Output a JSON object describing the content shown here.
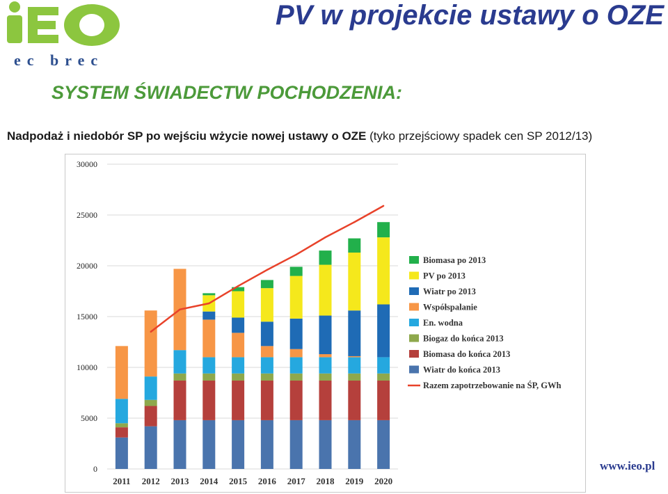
{
  "header": {
    "logo_main": "iEO",
    "logo_sub": "ec brec",
    "title": "PV w projekcie ustawy o OZE",
    "section_title": "SYSTEM ŚWIADECTW POCHODZENIA:",
    "subtitle_bold": "Nadpodaż i niedobór SP po wejściu wżycie nowej ustawy o OZE",
    "subtitle_normal": " (tyko przejściowy spadek cen SP 2012/13)"
  },
  "footer": {
    "url": "www.ieo.pl"
  },
  "colors": {
    "logo_green": "#8cc63f",
    "title_blue": "#2a3b8f",
    "section_green": "#4c9a3a"
  },
  "chart_data": {
    "type": "bar",
    "stacked": true,
    "categories": [
      "2011",
      "2012",
      "2013",
      "2014",
      "2015",
      "2016",
      "2017",
      "2018",
      "2019",
      "2020"
    ],
    "ylim": [
      0,
      30000
    ],
    "yticks": [
      0,
      5000,
      10000,
      15000,
      20000,
      25000,
      30000
    ],
    "grid": true,
    "legend_position": "right",
    "series": [
      {
        "name": "Wiatr do końca 2013",
        "color": "#4a74ad",
        "values": [
          3100,
          4200,
          4800,
          4800,
          4800,
          4800,
          4800,
          4800,
          4800,
          4800
        ]
      },
      {
        "name": "Biomasa do końca 2013",
        "color": "#b5403c",
        "values": [
          1000,
          2000,
          3900,
          3900,
          3900,
          3900,
          3900,
          3900,
          3900,
          3900
        ]
      },
      {
        "name": "Biogaz do końca 2013",
        "color": "#8ea84c",
        "values": [
          400,
          600,
          700,
          700,
          700,
          700,
          700,
          700,
          700,
          700
        ]
      },
      {
        "name": "En. wodna",
        "color": "#25a8df",
        "values": [
          2400,
          2300,
          2300,
          1600,
          1600,
          1600,
          1600,
          1600,
          1600,
          1600
        ]
      },
      {
        "name": "Współspalanie",
        "color": "#f79646",
        "values": [
          5200,
          6500,
          8000,
          3700,
          2400,
          1100,
          800,
          300,
          100,
          0
        ]
      },
      {
        "name": "Wiatr po 2013",
        "color": "#1f6bb5",
        "values": [
          0,
          0,
          0,
          800,
          1500,
          2400,
          3000,
          3800,
          4500,
          5200
        ]
      },
      {
        "name": "PV po 2013",
        "color": "#f5e81c",
        "values": [
          0,
          0,
          0,
          1600,
          2600,
          3300,
          4200,
          5000,
          5700,
          6600
        ]
      },
      {
        "name": "Biomasa po 2013",
        "color": "#22b04b",
        "values": [
          0,
          0,
          0,
          200,
          400,
          800,
          900,
          1400,
          1400,
          1500
        ]
      }
    ],
    "line": {
      "name": "Razem zapotrzebowanie na ŚP, GWh",
      "color": "#e8422a",
      "x": [
        "2012",
        "2013",
        "2014",
        "2015",
        "2016",
        "2017",
        "2018",
        "2019",
        "2020"
      ],
      "values": [
        13500,
        15700,
        16300,
        18000,
        19600,
        21100,
        22800,
        24300,
        25900
      ]
    }
  }
}
